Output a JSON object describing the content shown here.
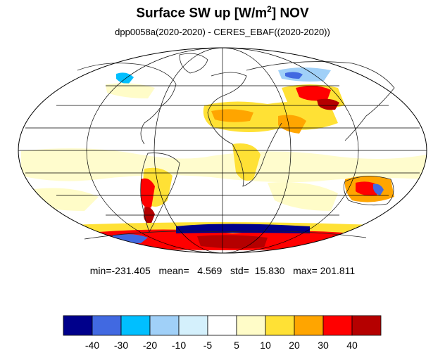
{
  "title": {
    "main": "Surface SW up [W/m",
    "superscript": "2",
    "suffix": "]  NOV"
  },
  "subtitle": "dpp0058a(2020-2020) - CERES_EBAF((2020-2020))",
  "stats": {
    "text": "min=-231.405   mean=   4.569   std=  15.830   max= 201.811",
    "min": -231.405,
    "mean": 4.569,
    "std": 15.83,
    "max": 201.811
  },
  "map": {
    "projection": "mollweide",
    "variable": "Surface SW up difference",
    "month": "NOV"
  },
  "colorbar": {
    "colors": [
      "#00008b",
      "#4169e1",
      "#00bfff",
      "#a0d0f8",
      "#d4f0fc",
      "#ffffff",
      "#fffcc8",
      "#ffe135",
      "#ffa500",
      "#ff0000",
      "#b50000"
    ],
    "labels": [
      "-40",
      "-30",
      "-20",
      "-10",
      "-5",
      "5",
      "10",
      "20",
      "30",
      "40"
    ]
  }
}
